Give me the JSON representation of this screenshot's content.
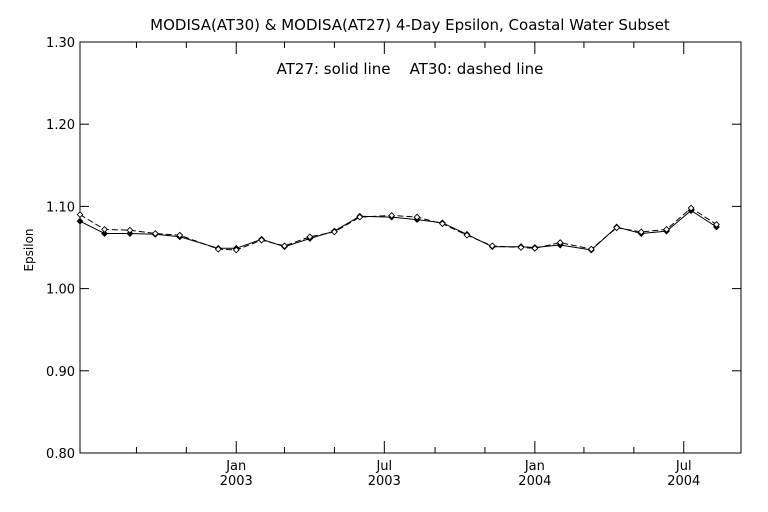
{
  "chart_data": {
    "type": "line",
    "title": "MODISA(AT30) & MODISA(AT27) 4-Day Epsilon, Coastal Water Subset",
    "annotation": "AT27: solid line    AT30: dashed line",
    "ylabel": "Epsilon",
    "xlabel": "",
    "xlim": [
      "2002-06-24",
      "2004-09-09"
    ],
    "ylim": [
      0.8,
      1.3
    ],
    "y_ticks": [
      {
        "value": 0.8,
        "label": "0.80"
      },
      {
        "value": 0.9,
        "label": "0.90"
      },
      {
        "value": 1.0,
        "label": "1.00"
      },
      {
        "value": 1.1,
        "label": "1.10"
      },
      {
        "value": 1.2,
        "label": "1.20"
      },
      {
        "value": 1.3,
        "label": "1.30"
      }
    ],
    "x_major_ticks": [
      {
        "date": "2003-01-01",
        "label_top": "Jan",
        "label_bottom": "2003"
      },
      {
        "date": "2003-07-01",
        "label_top": "Jul",
        "label_bottom": "2003"
      },
      {
        "date": "2004-01-01",
        "label_top": "Jan",
        "label_bottom": "2004"
      },
      {
        "date": "2004-07-01",
        "label_top": "Jul",
        "label_bottom": "2004"
      }
    ],
    "x_minor_ticks": [
      "2002-09-01",
      "2002-11-01",
      "2003-03-01",
      "2003-05-01",
      "2003-09-01",
      "2003-11-01",
      "2004-03-01",
      "2004-05-01"
    ],
    "series": [
      {
        "name": "AT27",
        "style": "solid",
        "marker": "filled-diamond",
        "points": [
          {
            "x": "2002-06-24",
            "y": 1.082
          },
          {
            "x": "2002-07-24",
            "y": 1.067
          },
          {
            "x": "2002-08-24",
            "y": 1.067
          },
          {
            "x": "2002-09-24",
            "y": 1.066
          },
          {
            "x": "2002-10-24",
            "y": 1.063
          },
          {
            "x": "2002-12-10",
            "y": 1.049
          },
          {
            "x": "2003-01-01",
            "y": 1.049
          },
          {
            "x": "2003-02-01",
            "y": 1.06
          },
          {
            "x": "2003-03-01",
            "y": 1.051
          },
          {
            "x": "2003-04-01",
            "y": 1.061
          },
          {
            "x": "2003-05-01",
            "y": 1.07
          },
          {
            "x": "2003-06-01",
            "y": 1.088
          },
          {
            "x": "2003-07-10",
            "y": 1.087
          },
          {
            "x": "2003-08-10",
            "y": 1.084
          },
          {
            "x": "2003-09-10",
            "y": 1.08
          },
          {
            "x": "2003-10-10",
            "y": 1.066
          },
          {
            "x": "2003-11-10",
            "y": 1.051
          },
          {
            "x": "2003-12-15",
            "y": 1.051
          },
          {
            "x": "2004-01-01",
            "y": 1.05
          },
          {
            "x": "2004-02-01",
            "y": 1.053
          },
          {
            "x": "2004-03-10",
            "y": 1.047
          },
          {
            "x": "2004-04-10",
            "y": 1.075
          },
          {
            "x": "2004-05-10",
            "y": 1.067
          },
          {
            "x": "2004-06-10",
            "y": 1.07
          },
          {
            "x": "2004-07-10",
            "y": 1.095
          },
          {
            "x": "2004-08-10",
            "y": 1.075
          }
        ]
      },
      {
        "name": "AT30",
        "style": "dashed",
        "marker": "open-diamond",
        "points": [
          {
            "x": "2002-06-24",
            "y": 1.09
          },
          {
            "x": "2002-07-24",
            "y": 1.072
          },
          {
            "x": "2002-08-24",
            "y": 1.071
          },
          {
            "x": "2002-09-24",
            "y": 1.067
          },
          {
            "x": "2002-10-24",
            "y": 1.065
          },
          {
            "x": "2002-12-10",
            "y": 1.048
          },
          {
            "x": "2003-01-01",
            "y": 1.047
          },
          {
            "x": "2003-02-01",
            "y": 1.059
          },
          {
            "x": "2003-03-01",
            "y": 1.052
          },
          {
            "x": "2003-04-01",
            "y": 1.063
          },
          {
            "x": "2003-05-01",
            "y": 1.069
          },
          {
            "x": "2003-06-01",
            "y": 1.087
          },
          {
            "x": "2003-07-10",
            "y": 1.089
          },
          {
            "x": "2003-08-10",
            "y": 1.087
          },
          {
            "x": "2003-09-10",
            "y": 1.079
          },
          {
            "x": "2003-10-10",
            "y": 1.065
          },
          {
            "x": "2003-11-10",
            "y": 1.052
          },
          {
            "x": "2003-12-15",
            "y": 1.05
          },
          {
            "x": "2004-01-01",
            "y": 1.049
          },
          {
            "x": "2004-02-01",
            "y": 1.056
          },
          {
            "x": "2004-03-10",
            "y": 1.048
          },
          {
            "x": "2004-04-10",
            "y": 1.074
          },
          {
            "x": "2004-05-10",
            "y": 1.069
          },
          {
            "x": "2004-06-10",
            "y": 1.072
          },
          {
            "x": "2004-07-10",
            "y": 1.098
          },
          {
            "x": "2004-08-10",
            "y": 1.078
          }
        ]
      }
    ],
    "grid": false,
    "colors": {
      "line": "#000000",
      "background": "#ffffff"
    }
  }
}
